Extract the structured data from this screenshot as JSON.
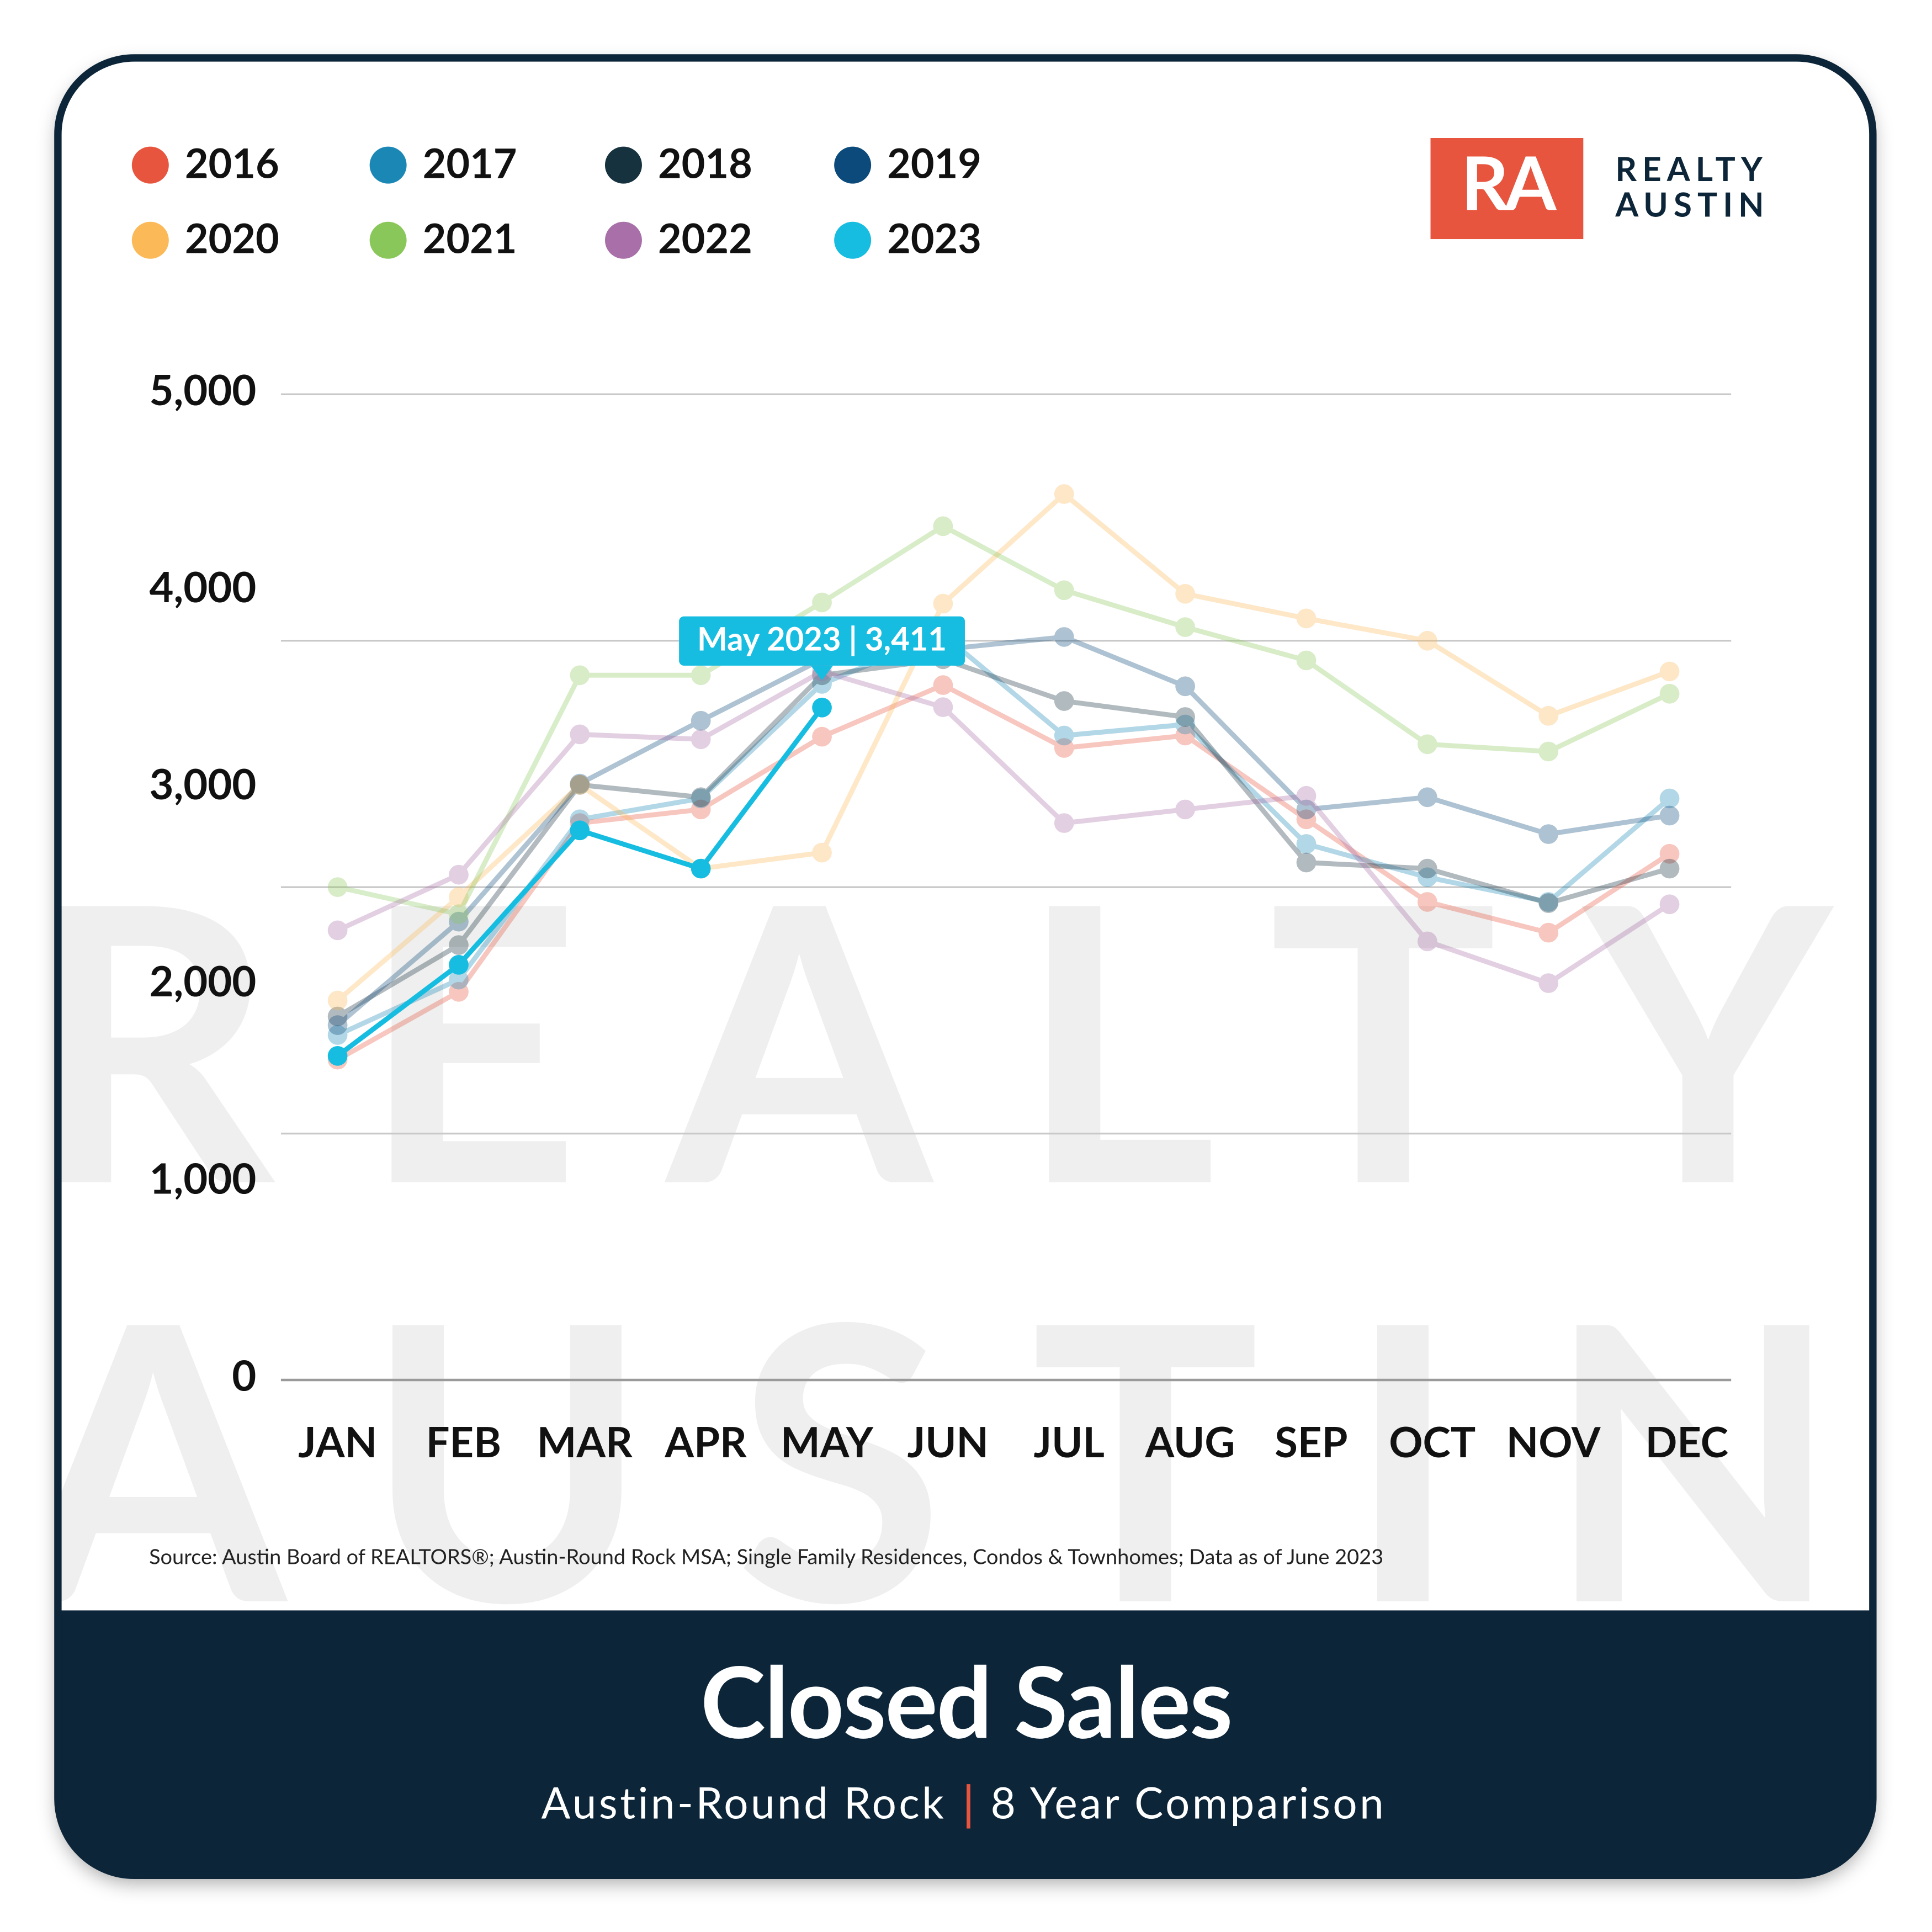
{
  "chart_data": {
    "type": "line",
    "title": "Closed Sales",
    "subtitle_parts": [
      "Austin-Round Rock",
      "8 Year Comparison"
    ],
    "source": "Source: Austin Board of REALTORS®; Austin-Round Rock MSA; Single Family Residences, Condos & Townhomes; Data as of June 2023",
    "logo": {
      "mark": "RA",
      "lines": [
        "REALTY",
        "AUSTIN"
      ]
    },
    "watermark": [
      "REALTY",
      "AUSTIN"
    ],
    "annotation": {
      "text": "May 2023 | 3,411",
      "series": 7,
      "index": 4
    },
    "categories": [
      "JAN",
      "FEB",
      "MAR",
      "APR",
      "MAY",
      "JUN",
      "JUL",
      "AUG",
      "SEP",
      "OCT",
      "NOV",
      "DEC"
    ],
    "ylim": [
      0,
      5000
    ],
    "yticks": [
      0,
      {
        "value": 1000,
        "label": "1,000"
      },
      {
        "value": 2000,
        "label": "2,000"
      },
      {
        "value": 3000,
        "label": "3,000"
      },
      {
        "value": 4000,
        "label": "4,000"
      },
      {
        "value": 5000,
        "label": "5,000"
      }
    ],
    "grid_lines": [
      0,
      1250,
      2500,
      3750,
      5000
    ],
    "grid": true,
    "legend": "top-left",
    "series": [
      {
        "name": "2016",
        "color": "#e8553f",
        "values": [
          1625,
          1969,
          2825,
          2894,
          3263,
          3525,
          3206,
          3269,
          2844,
          2425,
          2269,
          2669
        ]
      },
      {
        "name": "2017",
        "color": "#1a87b5",
        "values": [
          1750,
          2031,
          2844,
          2950,
          3531,
          3781,
          3269,
          3325,
          2719,
          2550,
          2425,
          2950
        ]
      },
      {
        "name": "2018",
        "color": "#17323f",
        "values": [
          1844,
          2206,
          3019,
          2956,
          3575,
          3656,
          3444,
          3363,
          2625,
          2594,
          2419,
          2594
        ]
      },
      {
        "name": "2019",
        "color": "#0b4a7a",
        "values": [
          1800,
          2325,
          3025,
          3344,
          3656,
          3706,
          3769,
          3519,
          2894,
          2956,
          2769,
          2863
        ]
      },
      {
        "name": "2020",
        "color": "#fbb957",
        "values": [
          1925,
          2450,
          3019,
          2594,
          2675,
          3938,
          4494,
          3988,
          3863,
          3750,
          3369,
          3594
        ]
      },
      {
        "name": "2021",
        "color": "#8ac75a",
        "values": [
          2500,
          2363,
          3575,
          3575,
          3944,
          4331,
          4006,
          3819,
          3650,
          3225,
          3188,
          3481
        ]
      },
      {
        "name": "2022",
        "color": "#a86fa8",
        "values": [
          2281,
          2563,
          3275,
          3250,
          3594,
          3413,
          2825,
          2894,
          2963,
          2225,
          2013,
          2413
        ]
      },
      {
        "name": "2023",
        "color": "#16bde0",
        "highlight": true,
        "values": [
          1644,
          2106,
          2788,
          2594,
          3411,
          null,
          null,
          null,
          null,
          null,
          null,
          null
        ]
      }
    ]
  }
}
